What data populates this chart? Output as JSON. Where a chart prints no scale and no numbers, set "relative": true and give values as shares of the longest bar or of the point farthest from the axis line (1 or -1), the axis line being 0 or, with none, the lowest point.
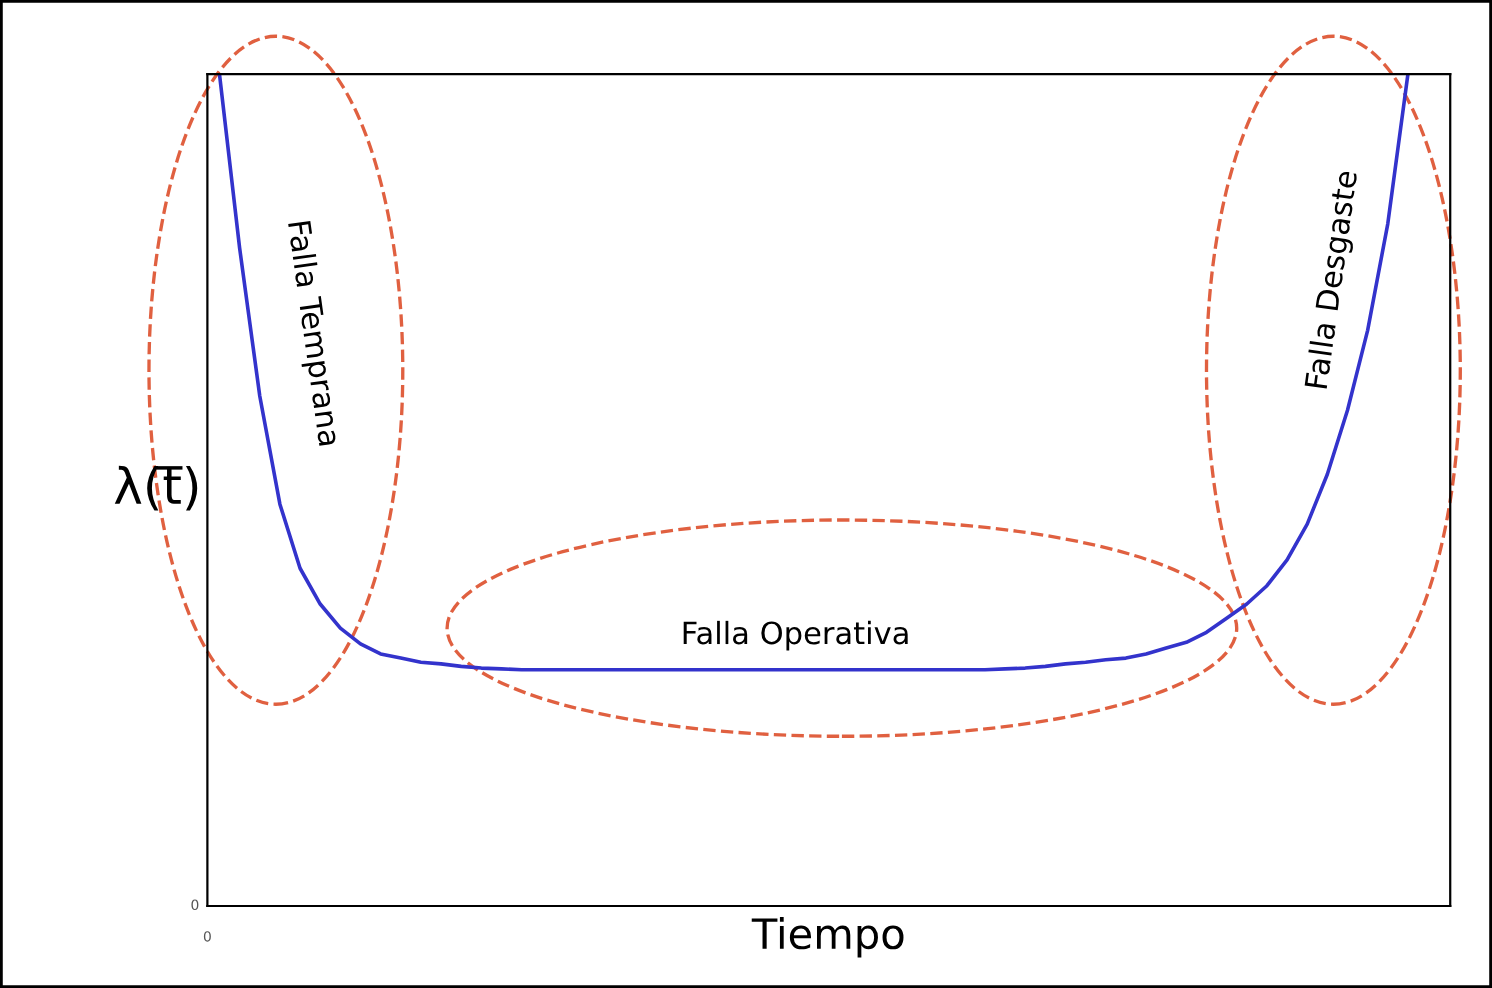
{
  "chart_data": {
    "type": "line",
    "relative": true,
    "xlabel": "Tiempo",
    "ylabel": "λ(t̅)",
    "categories": [
      null,
      null,
      null,
      null,
      null,
      null,
      null,
      null,
      null,
      null,
      null,
      null,
      null,
      null,
      null,
      null,
      null,
      null,
      null,
      null,
      null,
      null,
      null,
      null,
      null,
      null,
      null,
      null,
      null,
      null,
      null,
      null,
      null,
      null,
      null,
      null,
      null,
      null,
      null,
      null,
      null,
      null,
      null,
      null,
      null,
      null,
      null,
      null,
      null,
      null,
      null,
      null,
      null,
      null,
      null,
      null,
      null,
      null,
      null,
      null
    ],
    "series": [
      {
        "color": "#3333cc",
        "values": [
          1.0,
          0.791,
          0.613,
          0.483,
          0.406,
          0.363,
          0.334,
          0.315,
          0.303,
          0.298,
          0.293,
          0.291,
          0.288,
          0.286,
          0.285,
          0.284,
          0.284,
          0.284,
          0.284,
          0.284,
          0.284,
          0.284,
          0.284,
          0.284,
          0.284,
          0.284,
          0.284,
          0.284,
          0.284,
          0.284,
          0.284,
          0.284,
          0.284,
          0.284,
          0.284,
          0.284,
          0.284,
          0.284,
          0.284,
          0.285,
          0.286,
          0.288,
          0.291,
          0.293,
          0.296,
          0.298,
          0.303,
          0.31,
          0.317,
          0.329,
          0.346,
          0.363,
          0.385,
          0.416,
          0.459,
          0.519,
          0.596,
          0.692,
          0.82,
          1.0
        ]
      }
    ],
    "annotations": [
      "Falla Temprana",
      "Falla Operativa",
      "Falla Desgaste",
      "0",
      "0"
    ],
    "marker": "none",
    "line_style": "solid"
  }
}
